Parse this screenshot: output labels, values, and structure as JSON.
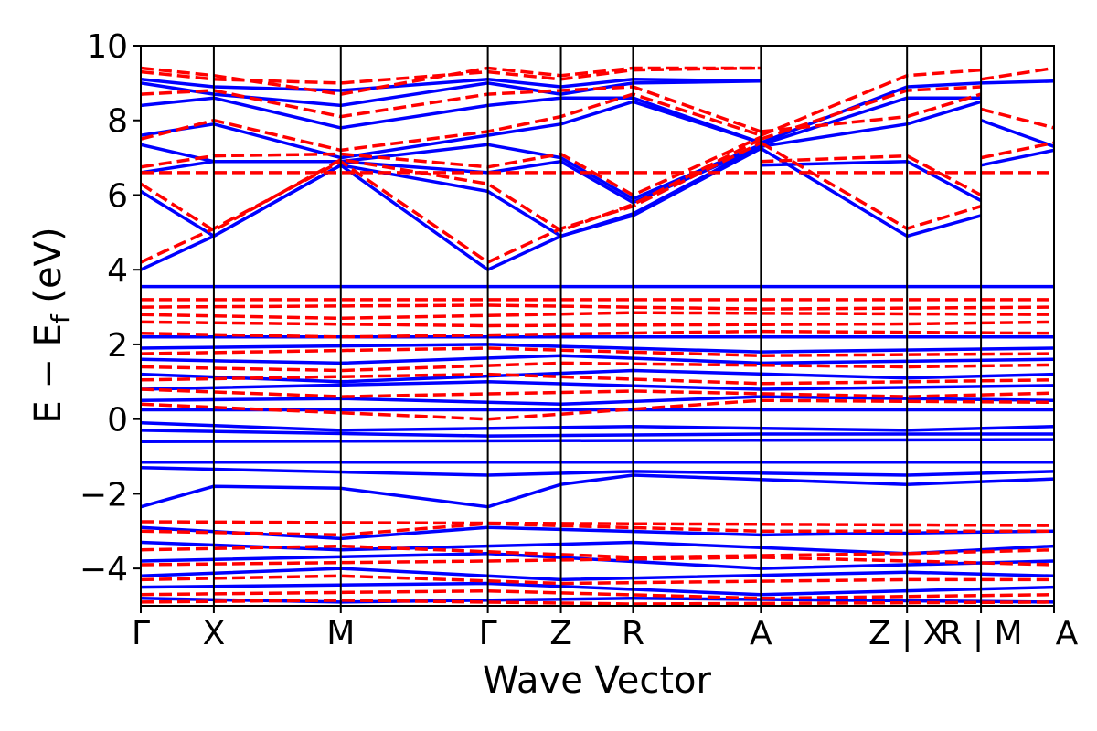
{
  "chart_data": {
    "type": "line",
    "title": "",
    "xlabel": "Wave Vector",
    "ylabel": "E − E",
    "ylabel_subscript": "f",
    "ylabel_unit": " (eV)",
    "ylim": [
      -5,
      10
    ],
    "yticks": [
      -4,
      -2,
      0,
      2,
      4,
      6,
      8,
      10
    ],
    "ytick_labels": [
      "−4",
      "−2",
      "0",
      "2",
      "4",
      "6",
      "8",
      "10"
    ],
    "xlim": [
      0,
      1
    ],
    "kpoints": [
      {
        "label": "Γ",
        "x": 0.0
      },
      {
        "label": "X",
        "x": 0.08
      },
      {
        "label": "M",
        "x": 0.219
      },
      {
        "label": "Γ",
        "x": 0.38
      },
      {
        "label": "Z",
        "x": 0.46
      },
      {
        "label": "R",
        "x": 0.539
      },
      {
        "label": "A",
        "x": 0.679
      },
      {
        "label": "Z | X",
        "x": 0.839
      },
      {
        "label": "R | M",
        "x": 0.92
      },
      {
        "label": "A",
        "x": 1.0
      }
    ],
    "vertical_lines": [
      0.08,
      0.219,
      0.38,
      0.46,
      0.539,
      0.679,
      0.839,
      0.92
    ],
    "colors": {
      "spin_up": "#0000ff",
      "spin_down": "#ff0000",
      "grid": "#000000"
    },
    "series": [
      {
        "color": "#0000ff",
        "style": "solid",
        "bands": [
          {
            "k": [
              0,
              0.08,
              0.219,
              0.38,
              0.46,
              0.539,
              0.679
            ],
            "e": [
              4.0,
              4.9,
              6.8,
              4.0,
              4.9,
              5.45,
              7.25
            ]
          },
          {
            "k": [
              0.679,
              0.839
            ],
            "e": [
              7.25,
              4.9
            ]
          },
          {
            "k": [
              0.839,
              0.92
            ],
            "e": [
              4.9,
              5.45
            ]
          },
          {
            "k": [
              0,
              0.08,
              0.219,
              0.38,
              0.46,
              0.539,
              0.679
            ],
            "e": [
              6.1,
              4.9,
              6.8,
              6.1,
              4.9,
              5.5,
              7.3
            ]
          },
          {
            "k": [
              0,
              0.08,
              0.219,
              0.38,
              0.46,
              0.539,
              0.679
            ],
            "e": [
              6.6,
              6.9,
              6.9,
              6.6,
              6.9,
              5.8,
              7.3
            ]
          },
          {
            "k": [
              0.679,
              0.839,
              0.92
            ],
            "e": [
              6.8,
              6.9,
              5.85
            ]
          },
          {
            "k": [
              0,
              0.08,
              0.219,
              0.38,
              0.46,
              0.539,
              0.679
            ],
            "e": [
              7.35,
              6.9,
              6.9,
              7.35,
              7.0,
              5.9,
              7.35
            ]
          },
          {
            "k": [
              0,
              0.08,
              0.219,
              0.38,
              0.46,
              0.539,
              0.679
            ],
            "e": [
              7.6,
              7.9,
              7.0,
              7.6,
              7.9,
              8.5,
              7.4
            ]
          },
          {
            "k": [
              0,
              0.08,
              0.219,
              0.38,
              0.46,
              0.539,
              0.679
            ],
            "e": [
              8.4,
              8.6,
              7.8,
              8.4,
              8.6,
              8.6,
              7.4
            ]
          },
          {
            "k": [
              0,
              0.08,
              0.219,
              0.38,
              0.46,
              0.539,
              0.679
            ],
            "e": [
              9.0,
              8.7,
              8.4,
              9.0,
              8.7,
              9.0,
              9.05
            ]
          },
          {
            "k": [
              0,
              0.08,
              0.219,
              0.38,
              0.46,
              0.539,
              0.679
            ],
            "e": [
              9.1,
              8.9,
              8.8,
              9.1,
              8.9,
              9.1,
              9.05
            ]
          },
          {
            "k": [
              0.679,
              0.839,
              0.92
            ],
            "e": [
              7.4,
              8.9,
              9.0
            ]
          },
          {
            "k": [
              0.679,
              0.839,
              0.92
            ],
            "e": [
              7.35,
              8.6,
              8.6
            ]
          },
          {
            "k": [
              0.679,
              0.839,
              0.92
            ],
            "e": [
              7.3,
              7.9,
              8.5
            ]
          },
          {
            "k": [
              0.92,
              1.0
            ],
            "e": [
              9.0,
              9.05
            ]
          },
          {
            "k": [
              0.92,
              1.0
            ],
            "e": [
              8.0,
              7.3
            ]
          },
          {
            "k": [
              0.92,
              1.0
            ],
            "e": [
              6.8,
              7.2
            ]
          },
          {
            "k": [
              0,
              1.0
            ],
            "e": [
              3.55,
              3.55
            ]
          },
          {
            "k": [
              0,
              1.0
            ],
            "e": [
              2.2,
              2.2
            ]
          },
          {
            "k": [
              0,
              0.38,
              0.679,
              1.0
            ],
            "e": [
              1.9,
              2.0,
              1.8,
              1.9
            ]
          },
          {
            "k": [
              0,
              0.219,
              0.46,
              0.679,
              1.0
            ],
            "e": [
              1.6,
              1.5,
              1.7,
              1.5,
              1.6
            ]
          },
          {
            "k": [
              0,
              0.219,
              0.539,
              0.839,
              1.0
            ],
            "e": [
              1.2,
              1.0,
              1.3,
              1.1,
              1.2
            ]
          },
          {
            "k": [
              0,
              0.38,
              0.679,
              1.0
            ],
            "e": [
              0.8,
              1.0,
              0.8,
              0.9
            ]
          },
          {
            "k": [
              0,
              0.219,
              0.46,
              0.679,
              1.0
            ],
            "e": [
              0.5,
              0.55,
              0.4,
              0.6,
              0.5
            ]
          },
          {
            "k": [
              0,
              1.0
            ],
            "e": [
              0.25,
              0.25
            ]
          },
          {
            "k": [
              0,
              0.219,
              0.539,
              0.839,
              1.0
            ],
            "e": [
              -0.1,
              -0.3,
              -0.2,
              -0.3,
              -0.2
            ]
          },
          {
            "k": [
              0,
              0.38,
              0.679,
              1.0
            ],
            "e": [
              -0.3,
              -0.45,
              -0.4,
              -0.4
            ]
          },
          {
            "k": [
              0,
              1.0
            ],
            "e": [
              -0.6,
              -0.55
            ]
          },
          {
            "k": [
              0,
              1.0
            ],
            "e": [
              -1.15,
              -1.15
            ]
          },
          {
            "k": [
              0,
              0.38,
              0.539,
              0.839,
              1.0
            ],
            "e": [
              -1.3,
              -1.5,
              -1.4,
              -1.5,
              -1.4
            ]
          },
          {
            "k": [
              0,
              0.08,
              0.219,
              0.38,
              0.46,
              0.539,
              0.839,
              1.0
            ],
            "e": [
              -2.35,
              -1.8,
              -1.85,
              -2.35,
              -1.75,
              -1.5,
              -1.75,
              -1.6
            ]
          },
          {
            "k": [
              0,
              0.219,
              0.38,
              0.679,
              1.0
            ],
            "e": [
              -2.9,
              -3.2,
              -2.9,
              -3.1,
              -3.0
            ]
          },
          {
            "k": [
              0,
              0.219,
              0.539,
              0.839,
              1.0
            ],
            "e": [
              -3.3,
              -3.5,
              -3.3,
              -3.6,
              -3.4
            ]
          },
          {
            "k": [
              0,
              0.38,
              0.679,
              1.0
            ],
            "e": [
              -3.8,
              -3.6,
              -4.0,
              -3.8
            ]
          },
          {
            "k": [
              0,
              0.219,
              0.46,
              0.839,
              1.0
            ],
            "e": [
              -4.2,
              -4.0,
              -4.3,
              -4.1,
              -4.2
            ]
          },
          {
            "k": [
              0,
              0.38,
              0.679,
              1.0
            ],
            "e": [
              -4.5,
              -4.4,
              -4.7,
              -4.5
            ]
          },
          {
            "k": [
              0,
              0.219,
              0.539,
              1.0
            ],
            "e": [
              -4.8,
              -4.9,
              -4.8,
              -4.9
            ]
          }
        ]
      },
      {
        "color": "#ff0000",
        "style": "dashed",
        "bands": [
          {
            "k": [
              0,
              0.08,
              0.219,
              0.38,
              0.46,
              0.539,
              0.679
            ],
            "e": [
              4.2,
              5.1,
              6.9,
              4.2,
              5.1,
              5.7,
              7.4
            ]
          },
          {
            "k": [
              0.679,
              0.839,
              0.92
            ],
            "e": [
              7.4,
              5.1,
              5.7
            ]
          },
          {
            "k": [
              0,
              0.08,
              0.219,
              0.38,
              0.46,
              0.539,
              0.679
            ],
            "e": [
              6.3,
              5.05,
              6.95,
              6.3,
              5.05,
              5.75,
              7.5
            ]
          },
          {
            "k": [
              0,
              1.0
            ],
            "e": [
              6.6,
              6.6
            ]
          },
          {
            "k": [
              0,
              0.08,
              0.219,
              0.38,
              0.46,
              0.539,
              0.679
            ],
            "e": [
              6.75,
              7.05,
              7.1,
              6.75,
              7.1,
              6.0,
              7.55
            ]
          },
          {
            "k": [
              0.679,
              0.839,
              0.92
            ],
            "e": [
              6.9,
              7.05,
              6.0
            ]
          },
          {
            "k": [
              0,
              0.08,
              0.219,
              0.38,
              0.46,
              0.539,
              0.679
            ],
            "e": [
              7.5,
              8.0,
              7.2,
              7.7,
              8.1,
              8.7,
              7.6
            ]
          },
          {
            "k": [
              0,
              0.08,
              0.219,
              0.38,
              0.46,
              0.539,
              0.679
            ],
            "e": [
              8.7,
              8.8,
              8.1,
              8.7,
              8.8,
              8.9,
              7.7
            ]
          },
          {
            "k": [
              0,
              0.08,
              0.219,
              0.38,
              0.46,
              0.539,
              0.679
            ],
            "e": [
              9.3,
              9.1,
              9.0,
              9.3,
              9.1,
              9.35,
              9.4
            ]
          },
          {
            "k": [
              0,
              0.08,
              0.219,
              0.38,
              0.46,
              0.539,
              0.679
            ],
            "e": [
              9.4,
              9.2,
              8.7,
              9.4,
              9.2,
              9.4,
              9.4
            ]
          },
          {
            "k": [
              0.679,
              0.839,
              0.92
            ],
            "e": [
              7.6,
              9.2,
              9.35
            ]
          },
          {
            "k": [
              0.679,
              0.839,
              0.92
            ],
            "e": [
              7.5,
              8.8,
              8.9
            ]
          },
          {
            "k": [
              0.679,
              0.839,
              0.92
            ],
            "e": [
              7.7,
              8.1,
              8.7
            ]
          },
          {
            "k": [
              0.92,
              1.0
            ],
            "e": [
              9.1,
              9.4
            ]
          },
          {
            "k": [
              0.92,
              1.0
            ],
            "e": [
              8.3,
              7.8
            ]
          },
          {
            "k": [
              0.92,
              1.0
            ],
            "e": [
              7.0,
              7.4
            ]
          },
          {
            "k": [
              0,
              1.0
            ],
            "e": [
              3.2,
              3.2
            ]
          },
          {
            "k": [
              0,
              0.38,
              0.679,
              1.0
            ],
            "e": [
              3.0,
              3.05,
              2.95,
              3.0
            ]
          },
          {
            "k": [
              0,
              0.219,
              0.539,
              1.0
            ],
            "e": [
              2.8,
              2.7,
              2.85,
              2.8
            ]
          },
          {
            "k": [
              0,
              0.38,
              0.839,
              1.0
            ],
            "e": [
              2.6,
              2.5,
              2.55,
              2.6
            ]
          },
          {
            "k": [
              0,
              0.219,
              0.679,
              1.0
            ],
            "e": [
              2.3,
              2.2,
              2.35,
              2.3
            ]
          },
          {
            "k": [
              0,
              0.38,
              0.679,
              1.0
            ],
            "e": [
              1.75,
              1.9,
              1.7,
              1.75
            ]
          },
          {
            "k": [
              0,
              0.219,
              0.46,
              0.839,
              1.0
            ],
            "e": [
              1.4,
              1.3,
              1.5,
              1.4,
              1.45
            ]
          },
          {
            "k": [
              0,
              0.38,
              0.679,
              1.0
            ],
            "e": [
              1.05,
              1.2,
              0.95,
              1.05
            ]
          },
          {
            "k": [
              0,
              0.219,
              0.539,
              0.839,
              1.0
            ],
            "e": [
              0.8,
              0.6,
              0.75,
              0.6,
              0.7
            ]
          },
          {
            "k": [
              0,
              0.38,
              0.679,
              1.0
            ],
            "e": [
              0.4,
              0.0,
              0.5,
              0.45
            ]
          },
          {
            "k": [
              0,
              1.0
            ],
            "e": [
              -2.75,
              -2.85
            ]
          },
          {
            "k": [
              0,
              0.219,
              0.38,
              0.679,
              1.0
            ],
            "e": [
              -3.0,
              -3.1,
              -2.8,
              -3.0,
              -3.0
            ]
          },
          {
            "k": [
              0,
              0.219,
              0.539,
              0.839,
              1.0
            ],
            "e": [
              -3.5,
              -3.4,
              -3.7,
              -3.6,
              -3.5
            ]
          },
          {
            "k": [
              0,
              0.38,
              0.679,
              1.0
            ],
            "e": [
              -3.9,
              -3.8,
              -3.7,
              -3.9
            ]
          },
          {
            "k": [
              0,
              0.219,
              0.46,
              0.839,
              1.0
            ],
            "e": [
              -4.3,
              -4.2,
              -4.4,
              -4.3,
              -4.3
            ]
          },
          {
            "k": [
              0,
              0.38,
              0.679,
              1.0
            ],
            "e": [
              -4.7,
              -4.6,
              -4.8,
              -4.7
            ]
          },
          {
            "k": [
              0,
              0.219,
              0.539,
              1.0
            ],
            "e": [
              -4.9,
              -4.85,
              -4.95,
              -4.9
            ]
          }
        ]
      }
    ]
  }
}
